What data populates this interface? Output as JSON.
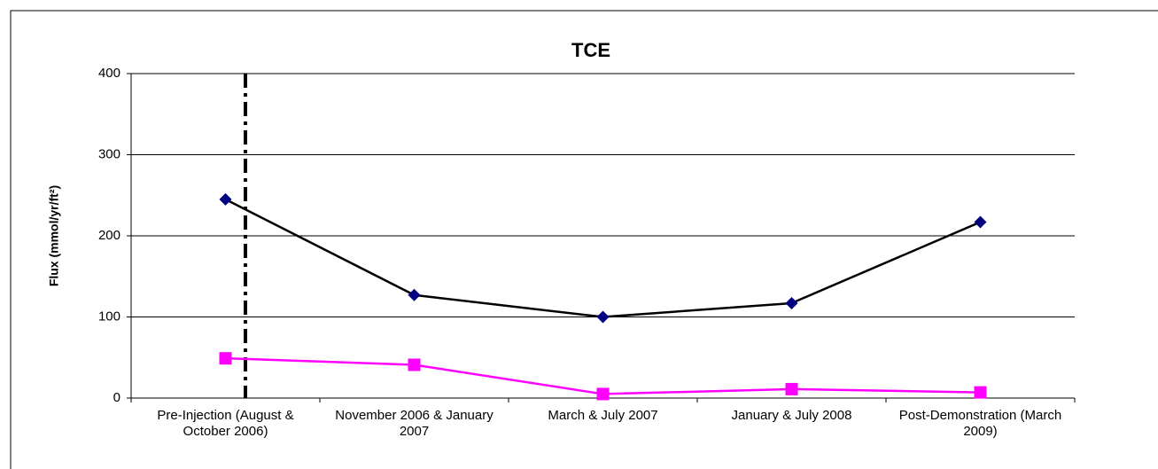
{
  "chart_data": {
    "type": "line",
    "title": "TCE",
    "y_label": "Flux (mmol/yr/ft²)",
    "categories": [
      "Pre-Injection (August & October 2006)",
      "November 2006 & January 2007",
      "March & July 2007",
      "January & July 2008",
      "Post-Demonstration (March 2009)"
    ],
    "series": [
      {
        "color": "#000000",
        "marker_color": "#000080",
        "marker": "diamond",
        "values": [
          245,
          127,
          100,
          117,
          217
        ]
      },
      {
        "color": "#ff00ff",
        "marker_color": "#ff00ff",
        "marker": "square",
        "values": [
          49,
          41,
          5,
          11,
          7
        ]
      }
    ],
    "ylim": [
      0,
      400
    ],
    "yticks": [
      0,
      100,
      200,
      300,
      400
    ],
    "grid": true
  }
}
